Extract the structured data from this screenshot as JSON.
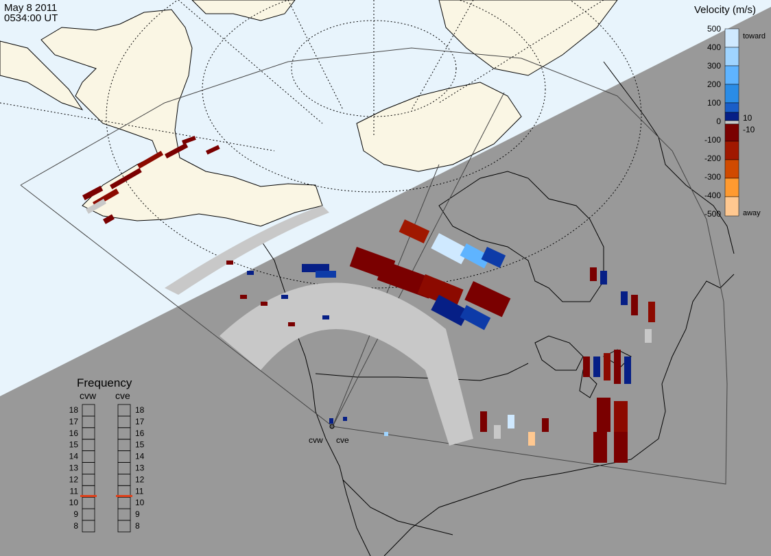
{
  "header": {
    "date": "May  8 2011",
    "time": "0534:00 UT"
  },
  "radars": {
    "west": "cvw",
    "east": "cve"
  },
  "velocity_scale": {
    "title": "Velocity (m/s)",
    "ticks": [
      "500",
      "400",
      "300",
      "200",
      "100",
      "0",
      "-100",
      "-200",
      "-300",
      "-400",
      "-500"
    ],
    "marker_toward": "toward",
    "marker_away": "away",
    "marker_pos": "10",
    "marker_neg": "-10",
    "ground_scatter_color": "#c8c8c8",
    "colors_toward": [
      "#cfe9ff",
      "#9fd4ff",
      "#5fb4ff",
      "#2a8ce6",
      "#1a5ec8",
      "#0d3ba8",
      "#061f86"
    ],
    "colors_away": [
      "#7a0000",
      "#8c0a00",
      "#a01800",
      "#b82a00",
      "#d04a00",
      "#e86a00",
      "#ff9a30",
      "#ffc890"
    ]
  },
  "frequency_panel": {
    "title": "Frequency",
    "columns": [
      "cvw",
      "cve"
    ],
    "levels": [
      "18",
      "17",
      "16",
      "15",
      "14",
      "13",
      "12",
      "11",
      "10",
      "9",
      "8"
    ],
    "cvw_level": 11,
    "cve_level": 11,
    "marker_color": "#e0401a"
  }
}
